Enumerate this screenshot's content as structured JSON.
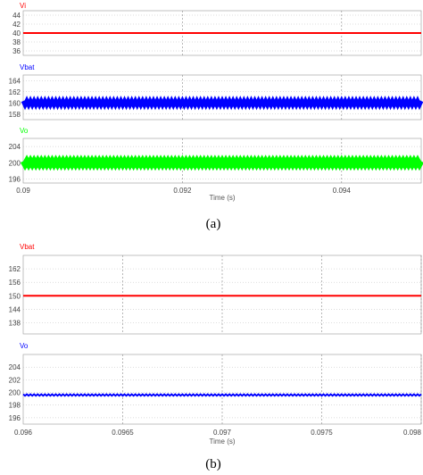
{
  "chart_data": [
    {
      "type": "line",
      "caption": "(a)",
      "xlabel": "Time (s)",
      "xlim": [
        0.09,
        0.095
      ],
      "xticks": [
        "0.09",
        "0.092",
        "0.094"
      ],
      "xtick_values": [
        0.09,
        0.092,
        0.094
      ],
      "grid": true,
      "panels": [
        {
          "name": "Vi",
          "color": "#ff0000",
          "ylim": [
            35,
            45
          ],
          "yticks": [
            36,
            38,
            40,
            42,
            44
          ],
          "ytick_labels": [
            "36",
            "38",
            "40",
            "42",
            "44"
          ],
          "value": 40,
          "ripple": 0,
          "stroke": 2
        },
        {
          "name": "Vbat",
          "color": "#0000ff",
          "ylim": [
            157,
            165
          ],
          "yticks": [
            158,
            160,
            162,
            164
          ],
          "ytick_labels": [
            "158",
            "160",
            "162",
            "164"
          ],
          "value": 160,
          "ripple": 0.35,
          "stroke": 5
        },
        {
          "name": "Vo",
          "color": "#00ff00",
          "ylim": [
            195,
            206
          ],
          "yticks": [
            196,
            200,
            204
          ],
          "ytick_labels": [
            "196",
            "200",
            "204"
          ],
          "value": 200,
          "ripple": 0.4,
          "stroke": 7
        }
      ]
    },
    {
      "type": "line",
      "caption": "(b)",
      "xlabel": "Time (s)",
      "xlim": [
        0.096,
        0.098
      ],
      "xticks": [
        "0.096",
        "0.0965",
        "0.097",
        "0.0975",
        "0.098"
      ],
      "xtick_values": [
        0.096,
        0.0965,
        0.097,
        0.0975,
        0.098
      ],
      "grid": true,
      "panels": [
        {
          "name": "Vbat",
          "color": "#ff0000",
          "ylim": [
            133,
            168
          ],
          "yticks": [
            138,
            144,
            150,
            156,
            162
          ],
          "ytick_labels": [
            "138",
            "144",
            "150",
            "156",
            "162"
          ],
          "value": 150,
          "ripple": 0,
          "stroke": 2
        },
        {
          "name": "Vo",
          "color": "#0000ff",
          "ylim": [
            195,
            206
          ],
          "yticks": [
            196,
            198,
            200,
            202,
            204
          ],
          "ytick_labels": [
            "196",
            "198",
            "200",
            "202",
            "204"
          ],
          "value": 199.6,
          "ripple": 0.12,
          "stroke": 2
        }
      ]
    }
  ]
}
